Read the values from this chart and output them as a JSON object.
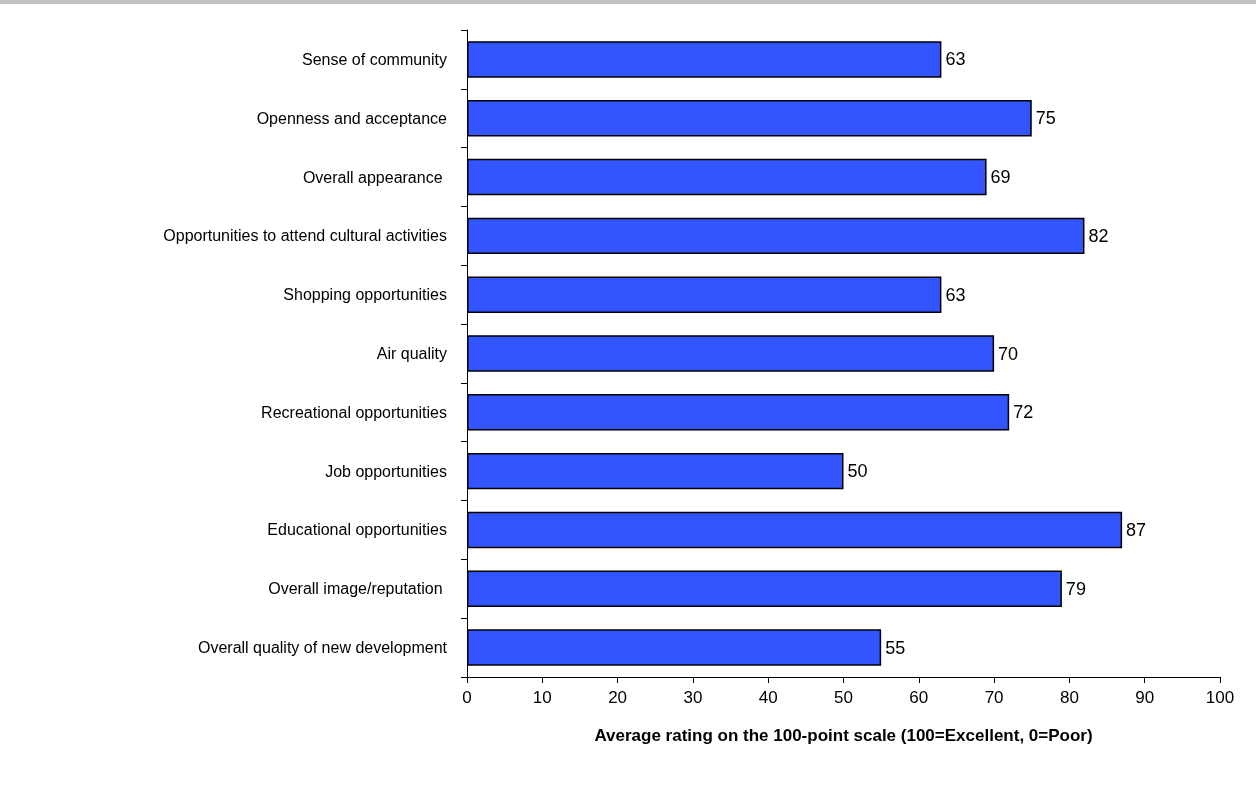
{
  "chart_data": {
    "type": "bar",
    "orientation": "horizontal",
    "categories": [
      "Sense of community",
      "Openness and acceptance",
      "Overall appearance ",
      "Opportunities to attend cultural activities",
      "Shopping opportunities",
      "Air quality",
      "Recreational opportunities",
      "Job opportunities",
      "Educational opportunities",
      "Overall image/reputation ",
      "Overall quality of new development"
    ],
    "values": [
      63,
      75,
      69,
      82,
      63,
      70,
      72,
      50,
      87,
      79,
      55
    ],
    "color": "#3355ff",
    "xlabel": "Average rating on the 100-point scale (100=Excellent, 0=Poor)",
    "xlim": [
      0,
      100
    ],
    "xticks": [
      0,
      10,
      20,
      30,
      40,
      50,
      60,
      70,
      80,
      90,
      100
    ],
    "data_labels": true,
    "grid": false
  }
}
